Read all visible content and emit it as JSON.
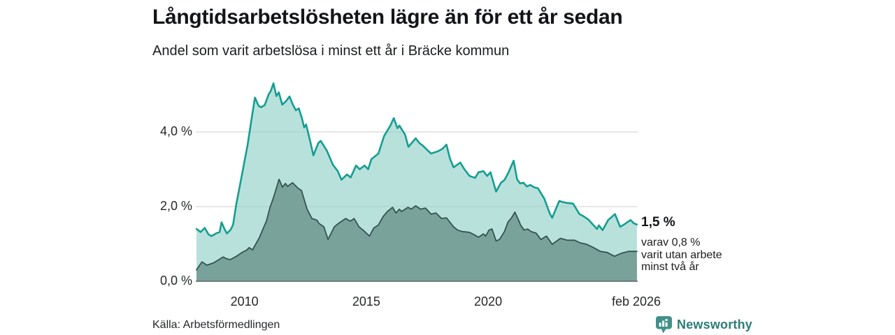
{
  "title": "Långtidsarbetslösheten lägre än för ett år sedan",
  "subtitle": "Andel som varit arbetslösa i minst ett år i Bräcke kommun",
  "source": "Källa: Arbetsförmedlingen",
  "branding": {
    "name": "Newsworthy",
    "text_color": "#2c7d76",
    "icon": "newsworthy-speech-bubble-bar-chart",
    "icon_color": "#42908a"
  },
  "annotations": {
    "end_value": "1,5 %",
    "note_lines": [
      "varav 0,8 %",
      "varit utan arbete",
      "minst två år"
    ]
  },
  "colors": {
    "accent_teal": "#149e91",
    "dark_slate": "#34544e",
    "light_fill": "#8ecec6",
    "dark_fill": "#79a29b",
    "gridline": "#cccccc",
    "baseline": "#5d6664"
  },
  "chart_data": {
    "type": "area",
    "title": "Långtidsarbetslösheten lägre än för ett år sedan",
    "subtitle": "Andel som varit arbetslösa i minst ett år i Bräcke kommun",
    "legend_position": "none",
    "grid": "horizontal",
    "x": {
      "min": 2008.0,
      "max": 2026.083,
      "ticks": [
        {
          "value": 2010,
          "label": "2010"
        },
        {
          "value": 2015,
          "label": "2015"
        },
        {
          "value": 2020,
          "label": "2020"
        },
        {
          "value": 2026.083,
          "label": "feb 2026"
        }
      ]
    },
    "y": {
      "min": 0,
      "max": 5.55,
      "unit": "%",
      "gridlines": [
        2,
        4
      ],
      "ticks": [
        {
          "value": 0,
          "label": "0,0 %"
        },
        {
          "value": 2,
          "label": "2,0 %"
        },
        {
          "value": 4,
          "label": "4,0 %"
        }
      ]
    },
    "series": [
      {
        "name": "Arbetslösa minst ett år",
        "end_label": "1,5 %",
        "line_color": "#149e91",
        "line_width": 2.6,
        "fill_color": "#8ecec6",
        "fill_opacity": 0.62,
        "points": [
          [
            2008.0,
            1.4
          ],
          [
            2008.17,
            1.32
          ],
          [
            2008.34,
            1.43
          ],
          [
            2008.5,
            1.25
          ],
          [
            2008.62,
            1.21
          ],
          [
            2008.8,
            1.28
          ],
          [
            2008.95,
            1.32
          ],
          [
            2009.03,
            1.58
          ],
          [
            2009.15,
            1.4
          ],
          [
            2009.25,
            1.28
          ],
          [
            2009.4,
            1.38
          ],
          [
            2009.5,
            1.51
          ],
          [
            2009.64,
            2.08
          ],
          [
            2009.87,
            2.86
          ],
          [
            2010.1,
            3.66
          ],
          [
            2010.25,
            4.3
          ],
          [
            2010.4,
            4.92
          ],
          [
            2010.55,
            4.7
          ],
          [
            2010.65,
            4.66
          ],
          [
            2010.8,
            4.72
          ],
          [
            2010.96,
            5.0
          ],
          [
            2011.05,
            5.1
          ],
          [
            2011.16,
            5.3
          ],
          [
            2011.28,
            4.96
          ],
          [
            2011.38,
            5.06
          ],
          [
            2011.52,
            4.73
          ],
          [
            2011.67,
            4.82
          ],
          [
            2011.82,
            4.95
          ],
          [
            2011.95,
            4.74
          ],
          [
            2012.08,
            4.58
          ],
          [
            2012.2,
            4.63
          ],
          [
            2012.33,
            4.36
          ],
          [
            2012.42,
            4.12
          ],
          [
            2012.5,
            4.2
          ],
          [
            2012.65,
            3.8
          ],
          [
            2012.8,
            3.37
          ],
          [
            2013.0,
            3.7
          ],
          [
            2013.1,
            3.76
          ],
          [
            2013.35,
            3.5
          ],
          [
            2013.6,
            3.12
          ],
          [
            2013.8,
            2.95
          ],
          [
            2013.95,
            2.72
          ],
          [
            2014.18,
            2.86
          ],
          [
            2014.33,
            2.78
          ],
          [
            2014.55,
            3.1
          ],
          [
            2014.7,
            3.0
          ],
          [
            2014.9,
            3.1
          ],
          [
            2015.05,
            3.0
          ],
          [
            2015.18,
            3.27
          ],
          [
            2015.47,
            3.42
          ],
          [
            2015.7,
            3.89
          ],
          [
            2015.96,
            4.17
          ],
          [
            2016.1,
            4.37
          ],
          [
            2016.25,
            4.1
          ],
          [
            2016.33,
            4.17
          ],
          [
            2016.56,
            3.93
          ],
          [
            2016.7,
            3.6
          ],
          [
            2017.0,
            3.83
          ],
          [
            2017.15,
            3.7
          ],
          [
            2017.28,
            3.64
          ],
          [
            2017.5,
            3.5
          ],
          [
            2017.63,
            3.42
          ],
          [
            2017.91,
            3.48
          ],
          [
            2018.1,
            3.55
          ],
          [
            2018.26,
            3.66
          ],
          [
            2018.4,
            3.3
          ],
          [
            2018.55,
            3.05
          ],
          [
            2018.83,
            3.18
          ],
          [
            2019.0,
            3.0
          ],
          [
            2019.21,
            2.82
          ],
          [
            2019.44,
            2.77
          ],
          [
            2019.58,
            2.92
          ],
          [
            2019.78,
            2.95
          ],
          [
            2019.93,
            2.82
          ],
          [
            2020.07,
            2.92
          ],
          [
            2020.3,
            2.4
          ],
          [
            2020.5,
            2.64
          ],
          [
            2020.64,
            2.71
          ],
          [
            2020.8,
            2.9
          ],
          [
            2021.02,
            3.23
          ],
          [
            2021.16,
            2.73
          ],
          [
            2021.28,
            2.62
          ],
          [
            2021.42,
            2.64
          ],
          [
            2021.56,
            2.54
          ],
          [
            2021.71,
            2.58
          ],
          [
            2021.85,
            2.52
          ],
          [
            2022.02,
            2.49
          ],
          [
            2022.28,
            2.21
          ],
          [
            2022.5,
            1.82
          ],
          [
            2022.6,
            1.7
          ],
          [
            2022.89,
            2.15
          ],
          [
            2023.17,
            2.1
          ],
          [
            2023.46,
            2.08
          ],
          [
            2023.72,
            1.8
          ],
          [
            2023.89,
            1.74
          ],
          [
            2024.09,
            1.65
          ],
          [
            2024.44,
            1.4
          ],
          [
            2024.52,
            1.5
          ],
          [
            2024.67,
            1.37
          ],
          [
            2024.9,
            1.64
          ],
          [
            2025.18,
            1.8
          ],
          [
            2025.39,
            1.46
          ],
          [
            2025.53,
            1.51
          ],
          [
            2025.82,
            1.64
          ],
          [
            2025.96,
            1.55
          ],
          [
            2026.08,
            1.52
          ]
        ]
      },
      {
        "name": "Arbetslösa minst två år",
        "end_label": "0,8 %",
        "line_color": "#34544e",
        "line_width": 1.8,
        "fill_color": "#79a29b",
        "fill_opacity": 1,
        "points": [
          [
            2008.0,
            0.3
          ],
          [
            2008.15,
            0.45
          ],
          [
            2008.23,
            0.52
          ],
          [
            2008.43,
            0.43
          ],
          [
            2008.6,
            0.47
          ],
          [
            2008.72,
            0.5
          ],
          [
            2008.92,
            0.58
          ],
          [
            2009.09,
            0.65
          ],
          [
            2009.25,
            0.6
          ],
          [
            2009.38,
            0.58
          ],
          [
            2009.64,
            0.67
          ],
          [
            2009.87,
            0.77
          ],
          [
            2010.07,
            0.84
          ],
          [
            2010.16,
            0.9
          ],
          [
            2010.3,
            0.84
          ],
          [
            2010.59,
            1.18
          ],
          [
            2010.73,
            1.4
          ],
          [
            2010.87,
            1.61
          ],
          [
            2011.02,
            1.98
          ],
          [
            2011.16,
            2.24
          ],
          [
            2011.3,
            2.54
          ],
          [
            2011.39,
            2.73
          ],
          [
            2011.53,
            2.52
          ],
          [
            2011.65,
            2.62
          ],
          [
            2011.74,
            2.54
          ],
          [
            2011.94,
            2.64
          ],
          [
            2012.17,
            2.49
          ],
          [
            2012.31,
            2.43
          ],
          [
            2012.54,
            1.93
          ],
          [
            2012.74,
            1.68
          ],
          [
            2012.94,
            1.64
          ],
          [
            2013.03,
            1.55
          ],
          [
            2013.23,
            1.46
          ],
          [
            2013.4,
            1.12
          ],
          [
            2013.66,
            1.46
          ],
          [
            2013.83,
            1.55
          ],
          [
            2014.12,
            1.68
          ],
          [
            2014.32,
            1.61
          ],
          [
            2014.47,
            1.68
          ],
          [
            2014.67,
            1.46
          ],
          [
            2014.84,
            1.37
          ],
          [
            2015.1,
            1.21
          ],
          [
            2015.27,
            1.42
          ],
          [
            2015.47,
            1.51
          ],
          [
            2015.67,
            1.74
          ],
          [
            2015.84,
            1.87
          ],
          [
            2016.05,
            1.98
          ],
          [
            2016.19,
            1.83
          ],
          [
            2016.33,
            1.93
          ],
          [
            2016.42,
            1.87
          ],
          [
            2016.68,
            1.98
          ],
          [
            2016.82,
            1.93
          ],
          [
            2017.0,
            2.02
          ],
          [
            2017.2,
            1.93
          ],
          [
            2017.4,
            1.96
          ],
          [
            2017.63,
            1.8
          ],
          [
            2017.83,
            1.83
          ],
          [
            2018.06,
            1.68
          ],
          [
            2018.26,
            1.7
          ],
          [
            2018.55,
            1.46
          ],
          [
            2018.72,
            1.37
          ],
          [
            2018.92,
            1.33
          ],
          [
            2019.21,
            1.31
          ],
          [
            2019.42,
            1.24
          ],
          [
            2019.58,
            1.18
          ],
          [
            2019.78,
            1.27
          ],
          [
            2019.87,
            1.21
          ],
          [
            2020.01,
            1.37
          ],
          [
            2020.13,
            1.4
          ],
          [
            2020.3,
            1.08
          ],
          [
            2020.44,
            1.12
          ],
          [
            2020.64,
            1.33
          ],
          [
            2020.79,
            1.59
          ],
          [
            2020.93,
            1.7
          ],
          [
            2021.07,
            1.85
          ],
          [
            2021.22,
            1.64
          ],
          [
            2021.3,
            1.51
          ],
          [
            2021.45,
            1.37
          ],
          [
            2021.59,
            1.4
          ],
          [
            2021.74,
            1.33
          ],
          [
            2021.94,
            1.29
          ],
          [
            2022.14,
            1.12
          ],
          [
            2022.37,
            1.21
          ],
          [
            2022.6,
            0.99
          ],
          [
            2022.94,
            1.15
          ],
          [
            2023.23,
            1.1
          ],
          [
            2023.52,
            1.1
          ],
          [
            2023.75,
            1.03
          ],
          [
            2024.01,
            0.99
          ],
          [
            2024.3,
            0.9
          ],
          [
            2024.58,
            0.8
          ],
          [
            2024.87,
            0.77
          ],
          [
            2025.16,
            0.67
          ],
          [
            2025.44,
            0.75
          ],
          [
            2025.73,
            0.8
          ],
          [
            2026.08,
            0.8
          ]
        ]
      }
    ]
  }
}
